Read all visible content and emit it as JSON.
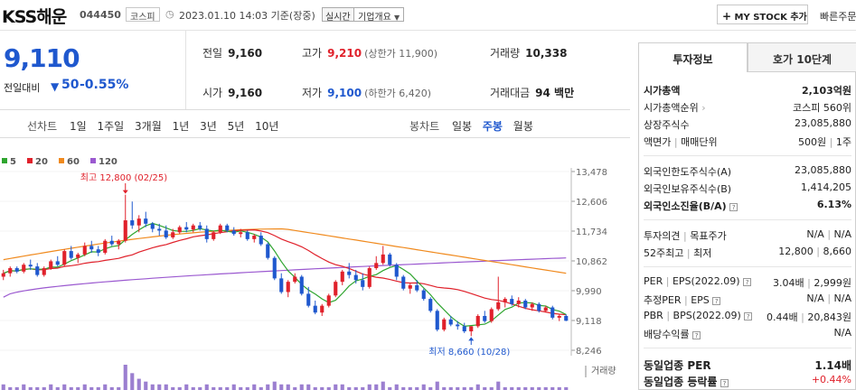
{
  "header": {
    "stock_name": "KSS해운",
    "stock_code": "044450",
    "market": "코스피",
    "datetime": "2023.01.10 14:03 기준(장중)",
    "realtime": "실시간",
    "company_info": "기업개요",
    "my_stock_button": "MY STOCK 추가",
    "quick_search": "빠른주문"
  },
  "quote": {
    "price": "9,110",
    "change_label": "전일대비",
    "change_value": "50",
    "change_pct": "-0.55%",
    "prev_close_label": "전일",
    "prev_close": "9,160",
    "high_label": "고가",
    "high": "9,210",
    "upper_limit": "(상한가 11,900)",
    "volume_label": "거래량",
    "volume": "10,338",
    "open_label": "시가",
    "open": "9,160",
    "low_label": "저가",
    "low": "9,100",
    "lower_limit": "(하한가 6,420)",
    "amount_label": "거래대금",
    "amount": "94 백만"
  },
  "toolbar": {
    "line_label": "선차트",
    "line_options": [
      "1일",
      "1주일",
      "3개월",
      "1년",
      "3년",
      "5년",
      "10년"
    ],
    "candle_label": "봉차트",
    "candle_options": [
      "일봉",
      "주봉",
      "월봉"
    ],
    "candle_selected": "주봉"
  },
  "chart_data": {
    "type": "candlestick",
    "legend": [
      {
        "name": "5",
        "color": "#2fa52f"
      },
      {
        "name": "20",
        "color": "#e0212b"
      },
      {
        "name": "60",
        "color": "#f08a1e"
      },
      {
        "name": "120",
        "color": "#9b59d0"
      }
    ],
    "y_ticks": [
      "13,478",
      "12,606",
      "11,734",
      "10,862",
      "9,990",
      "9,118",
      "8,246"
    ],
    "ylim": [
      8246,
      13478
    ],
    "high_annotation": "최고 12,800 (02/25)",
    "low_annotation": "최저 8,660 (10/28)",
    "volume_label": "거래량",
    "candles": [
      [
        10400,
        10600,
        10300,
        10500
      ],
      [
        10500,
        10700,
        10400,
        10650
      ],
      [
        10650,
        10700,
        10500,
        10550
      ],
      [
        10550,
        10800,
        10500,
        10750
      ],
      [
        10750,
        10900,
        10600,
        10700
      ],
      [
        10700,
        10800,
        10400,
        10450
      ],
      [
        10450,
        10700,
        10400,
        10650
      ],
      [
        10650,
        10900,
        10600,
        10850
      ],
      [
        10850,
        11000,
        10700,
        10750
      ],
      [
        10750,
        11200,
        10700,
        11150
      ],
      [
        11150,
        11300,
        10900,
        10950
      ],
      [
        10950,
        11100,
        10800,
        11050
      ],
      [
        11050,
        11400,
        11000,
        11300
      ],
      [
        11300,
        11450,
        11100,
        11200
      ],
      [
        11200,
        11300,
        11000,
        11100
      ],
      [
        11100,
        11500,
        11050,
        11450
      ],
      [
        11450,
        11600,
        11300,
        11350
      ],
      [
        11350,
        11500,
        11200,
        11450
      ],
      [
        11450,
        12800,
        11400,
        12050
      ],
      [
        12050,
        12600,
        11800,
        11900
      ],
      [
        11900,
        12200,
        11700,
        12100
      ],
      [
        12100,
        12300,
        11850,
        11950
      ],
      [
        11950,
        12000,
        11700,
        11800
      ],
      [
        11800,
        11950,
        11600,
        11750
      ],
      [
        11750,
        11900,
        11500,
        11550
      ],
      [
        11550,
        11800,
        11500,
        11700
      ],
      [
        11700,
        11900,
        11650,
        11850
      ],
      [
        11850,
        12000,
        11700,
        11780
      ],
      [
        11780,
        11950,
        11700,
        11900
      ],
      [
        11900,
        12000,
        11750,
        11800
      ],
      [
        11800,
        11900,
        11400,
        11500
      ],
      [
        11500,
        11750,
        11450,
        11700
      ],
      [
        11700,
        11950,
        11650,
        11900
      ],
      [
        11900,
        11950,
        11700,
        11750
      ],
      [
        11750,
        11850,
        11600,
        11650
      ],
      [
        11650,
        11800,
        11550,
        11700
      ],
      [
        11700,
        11750,
        11450,
        11500
      ],
      [
        11500,
        11650,
        11400,
        11600
      ],
      [
        11600,
        11700,
        11300,
        11350
      ],
      [
        11350,
        11400,
        10900,
        10950
      ],
      [
        10950,
        11000,
        10300,
        10350
      ],
      [
        10350,
        10500,
        9900,
        9950
      ],
      [
        9950,
        10300,
        9800,
        10250
      ],
      [
        10250,
        10500,
        10200,
        10400
      ],
      [
        10400,
        10450,
        9850,
        9900
      ],
      [
        9900,
        10100,
        9500,
        9550
      ],
      [
        9550,
        9700,
        9300,
        9350
      ],
      [
        9350,
        9600,
        9250,
        9550
      ],
      [
        9550,
        9900,
        9500,
        9850
      ],
      [
        9850,
        10300,
        9800,
        10250
      ],
      [
        10250,
        10600,
        10150,
        10550
      ],
      [
        10550,
        10800,
        10350,
        10450
      ],
      [
        10450,
        10600,
        10200,
        10300
      ],
      [
        10300,
        10500,
        10000,
        10100
      ],
      [
        10100,
        10700,
        10050,
        10650
      ],
      [
        10650,
        11000,
        10600,
        10800
      ],
      [
        10800,
        11300,
        10750,
        11050
      ],
      [
        11050,
        11100,
        10700,
        10750
      ],
      [
        10750,
        10800,
        10300,
        10400
      ],
      [
        10400,
        10450,
        10000,
        10050
      ],
      [
        10050,
        10200,
        9900,
        10150
      ],
      [
        10150,
        10300,
        9950,
        10000
      ],
      [
        10000,
        10050,
        9700,
        9750
      ],
      [
        9750,
        9800,
        9350,
        9400
      ],
      [
        9400,
        9450,
        8800,
        8850
      ],
      [
        8850,
        9200,
        8800,
        9150
      ],
      [
        9150,
        9250,
        8950,
        9000
      ],
      [
        9000,
        9100,
        8850,
        8950
      ],
      [
        8950,
        9050,
        8750,
        8800
      ],
      [
        8800,
        8950,
        8660,
        8950
      ],
      [
        8950,
        9300,
        8900,
        9250
      ],
      [
        9250,
        9400,
        9050,
        9100
      ],
      [
        9100,
        9500,
        9050,
        9450
      ],
      [
        9450,
        10400,
        9400,
        9650
      ],
      [
        9650,
        9800,
        9500,
        9750
      ],
      [
        9750,
        9850,
        9550,
        9600
      ],
      [
        9600,
        9800,
        9500,
        9700
      ],
      [
        9700,
        9750,
        9450,
        9500
      ],
      [
        9500,
        9650,
        9400,
        9600
      ],
      [
        9600,
        9650,
        9350,
        9400
      ],
      [
        9400,
        9550,
        9350,
        9500
      ],
      [
        9500,
        9550,
        9150,
        9200
      ],
      [
        9200,
        9300,
        9100,
        9250
      ],
      [
        9250,
        9300,
        9100,
        9110
      ]
    ],
    "volumes": [
      2,
      1,
      1,
      2,
      1,
      1,
      1,
      2,
      1,
      2,
      1,
      1,
      2,
      1,
      1,
      2,
      1,
      1,
      9,
      6,
      4,
      3,
      2,
      2,
      2,
      1,
      1,
      2,
      1,
      1,
      2,
      1,
      1,
      1,
      2,
      1,
      1,
      2,
      1,
      2,
      3,
      2,
      2,
      1,
      2,
      2,
      1,
      1,
      1,
      2,
      2,
      1,
      1,
      1,
      2,
      2,
      3,
      1,
      2,
      1,
      1,
      1,
      2,
      1,
      3,
      1,
      1,
      1,
      1,
      1,
      2,
      1,
      1,
      3,
      1,
      1,
      1,
      1,
      1,
      1,
      1,
      1,
      1,
      1
    ]
  },
  "info_panel": {
    "tab_invest": "투자정보",
    "tab_orderbook": "호가 10단계",
    "market_cap_label": "시가총액",
    "market_cap": "2,103억원",
    "market_cap_rank_label": "시가총액순위",
    "market_cap_rank": "코스피 560위",
    "shares_label": "상장주식수",
    "shares": "23,085,880",
    "face_value_label": "액면가",
    "trade_unit_label": "매매단위",
    "face_value": "500원",
    "trade_unit": "1주",
    "foreign_limit_label": "외국인한도주식수(A)",
    "foreign_limit": "23,085,880",
    "foreign_hold_label": "외국인보유주식수(B)",
    "foreign_hold": "1,414,205",
    "foreign_ratio_label": "외국인소진율(B/A)",
    "foreign_ratio": "6.13%",
    "opinion_label": "투자의견",
    "target_label": "목표주가",
    "opinion": "N/A",
    "target": "N/A",
    "w52_label": "52주최고",
    "w52_low_label": "최저",
    "w52_high": "12,800",
    "w52_low": "8,660",
    "per_label": "PER",
    "eps_label": "EPS(2022.09)",
    "per": "3.04배",
    "eps": "2,999원",
    "est_per_label": "추정PER",
    "est_eps_label": "EPS",
    "est_per": "N/A",
    "est_eps": "N/A",
    "pbr_label": "PBR",
    "bps_label": "BPS(2022.09)",
    "pbr": "0.44배",
    "bps": "20,843원",
    "div_label": "배당수익률",
    "div": "N/A",
    "sector_per_label": "동일업종 PER",
    "sector_per": "1.14배",
    "sector_rate_label": "동일업종 등락률",
    "sector_rate": "+0.44%"
  }
}
